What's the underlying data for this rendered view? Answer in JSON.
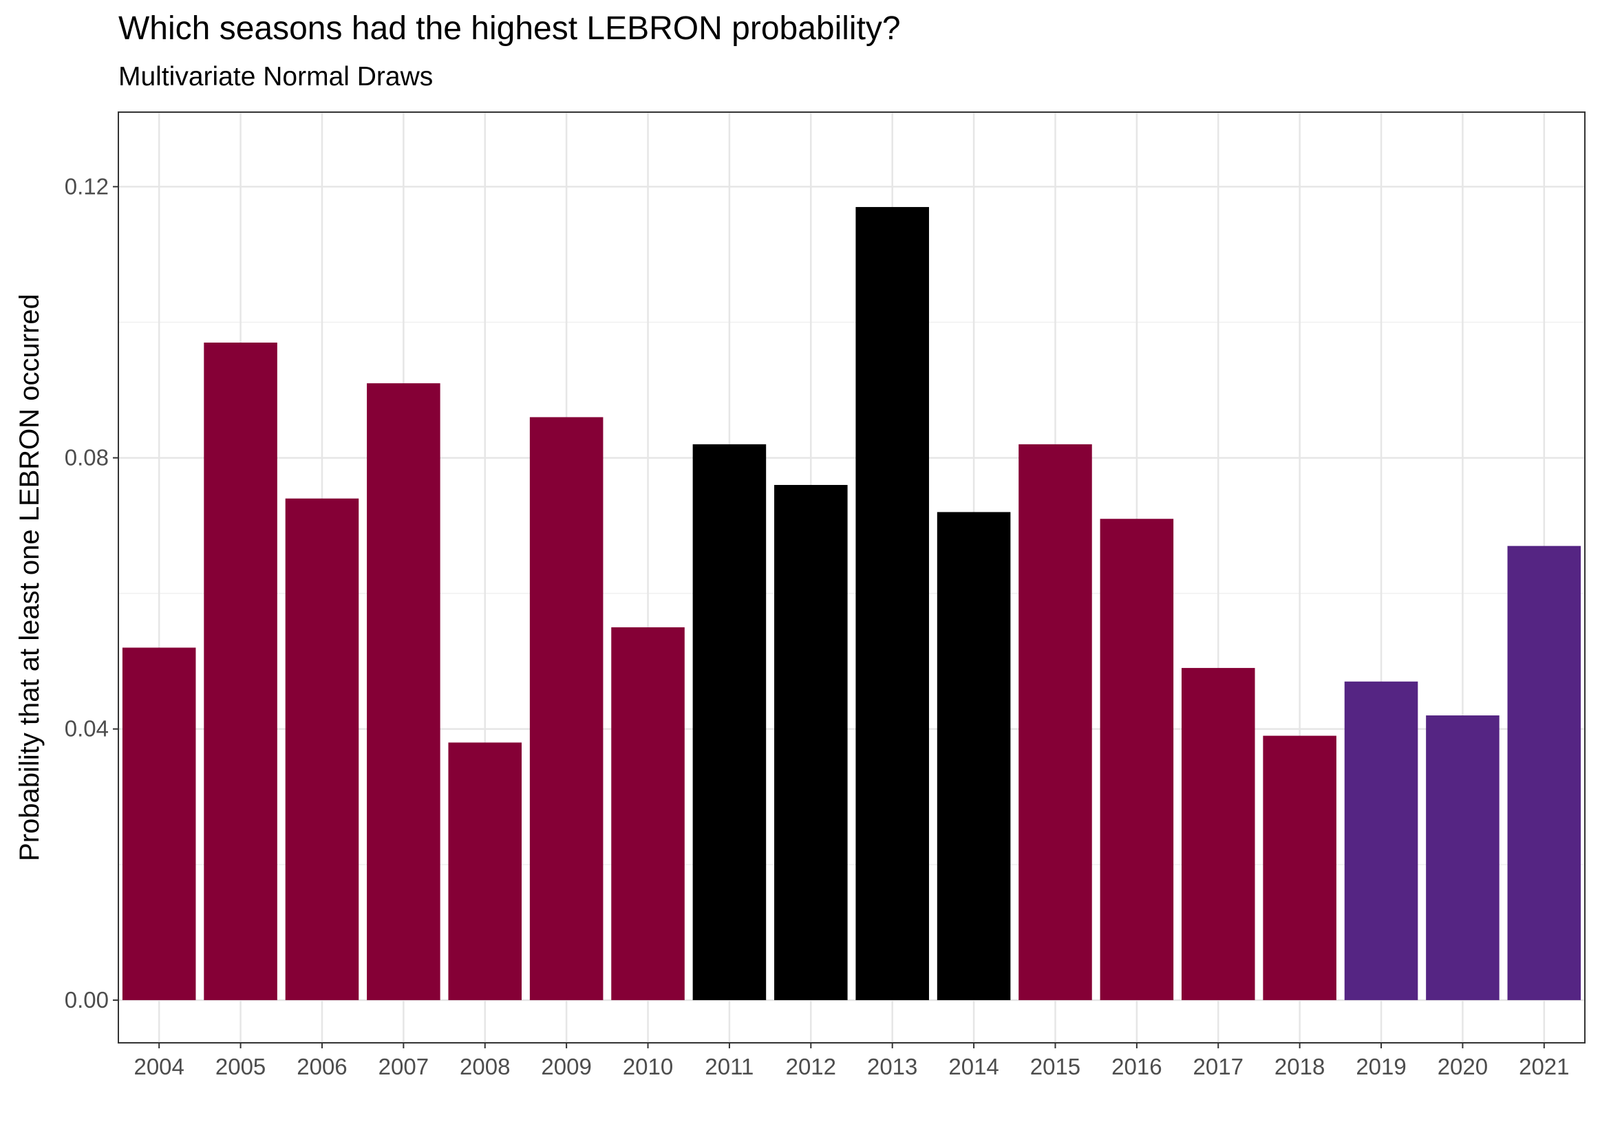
{
  "title": "Which seasons had the highest LEBRON probability?",
  "subtitle": "Multivariate Normal Draws",
  "chart_data": {
    "type": "bar",
    "title": "Which seasons had the highest LEBRON probability?",
    "subtitle": "Multivariate Normal Draws",
    "xlabel": "",
    "ylabel": "Probability that at least one LEBRON occurred",
    "ylim": [
      -0.0063,
      0.131
    ],
    "yticks": [
      "0.00",
      "0.04",
      "0.08",
      "0.12"
    ],
    "grid": true,
    "categories": [
      "2004",
      "2005",
      "2006",
      "2007",
      "2008",
      "2009",
      "2010",
      "2011",
      "2012",
      "2013",
      "2014",
      "2015",
      "2016",
      "2017",
      "2018",
      "2019",
      "2020",
      "2021"
    ],
    "values": [
      0.052,
      0.097,
      0.074,
      0.091,
      0.038,
      0.086,
      0.055,
      0.082,
      0.076,
      0.117,
      0.072,
      0.082,
      0.071,
      0.049,
      0.039,
      0.047,
      0.042,
      0.067
    ],
    "bar_colors": [
      "#850036",
      "#850036",
      "#850036",
      "#850036",
      "#850036",
      "#850036",
      "#850036",
      "#000000",
      "#000000",
      "#000000",
      "#000000",
      "#850036",
      "#850036",
      "#850036",
      "#850036",
      "#552583",
      "#552583",
      "#552583"
    ]
  }
}
